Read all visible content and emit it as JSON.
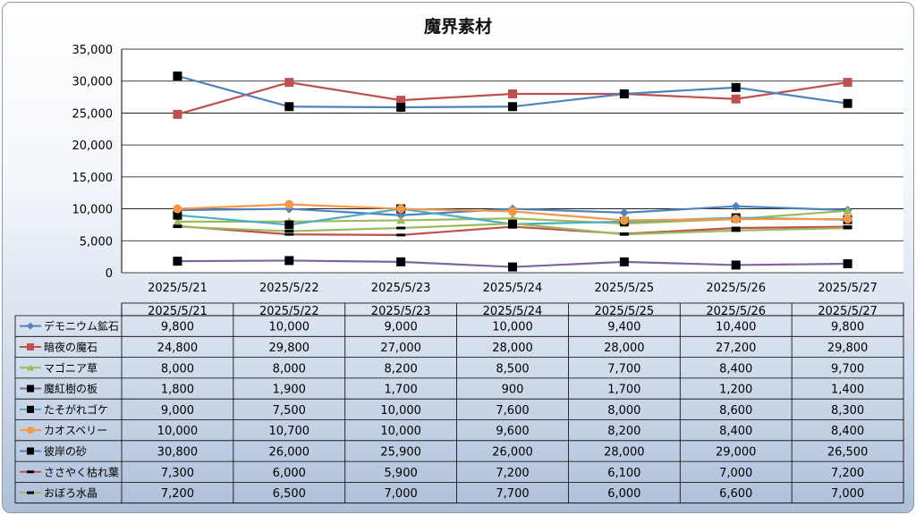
{
  "chart_data": {
    "type": "line",
    "title": "魔界素材",
    "categories": [
      "2025/5/21",
      "2025/5/22",
      "2025/5/23",
      "2025/5/24",
      "2025/5/25",
      "2025/5/26",
      "2025/5/27"
    ],
    "ylim": [
      0,
      35000
    ],
    "yticks": [
      "0",
      "5,000",
      "10,000",
      "15,000",
      "20,000",
      "25,000",
      "30,000",
      "35,000"
    ],
    "ytick_values": [
      0,
      5000,
      10000,
      15000,
      20000,
      25000,
      30000,
      35000
    ],
    "grid": true,
    "legend_placement": "data-table",
    "series": [
      {
        "name": "デモニウム鉱石",
        "color": "#4f81bd",
        "marker": "diamond",
        "values": [
          9800,
          10000,
          9000,
          10000,
          9400,
          10400,
          9800
        ],
        "labels": [
          "9,800",
          "10,000",
          "9,000",
          "10,000",
          "9,400",
          "10,400",
          "9,800"
        ]
      },
      {
        "name": "暗夜の魔石",
        "color": "#c0504d",
        "marker": "square",
        "values": [
          24800,
          29800,
          27000,
          28000,
          28000,
          27200,
          29800
        ],
        "labels": [
          "24,800",
          "29,800",
          "27,000",
          "28,000",
          "28,000",
          "27,200",
          "29,800"
        ]
      },
      {
        "name": "マゴニア草",
        "color": "#9bbb59",
        "marker": "triangle",
        "values": [
          8000,
          8000,
          8200,
          8500,
          7700,
          8400,
          9700
        ],
        "labels": [
          "8,000",
          "8,000",
          "8,200",
          "8,500",
          "7,700",
          "8,400",
          "9,700"
        ]
      },
      {
        "name": "魔紅樹の板",
        "color": "#8064a2",
        "marker": "blacksquare",
        "values": [
          1800,
          1900,
          1700,
          900,
          1700,
          1200,
          1400
        ],
        "labels": [
          "1,800",
          "1,900",
          "1,700",
          "900",
          "1,700",
          "1,200",
          "1,400"
        ]
      },
      {
        "name": "たそがれゴケ",
        "color": "#4bacc6",
        "marker": "blacksquare",
        "values": [
          9000,
          7500,
          10000,
          7600,
          8000,
          8600,
          8300
        ],
        "labels": [
          "9,000",
          "7,500",
          "10,000",
          "7,600",
          "8,000",
          "8,600",
          "8,300"
        ]
      },
      {
        "name": "カオスベリー",
        "color": "#f79646",
        "marker": "circle",
        "values": [
          10000,
          10700,
          10000,
          9600,
          8200,
          8400,
          8400
        ],
        "labels": [
          "10,000",
          "10,700",
          "10,000",
          "9,600",
          "8,200",
          "8,400",
          "8,400"
        ]
      },
      {
        "name": "彼岸の砂",
        "color": "#4f81bd",
        "marker": "blacksquare",
        "values": [
          30800,
          26000,
          25900,
          26000,
          28000,
          29000,
          26500
        ],
        "labels": [
          "30,800",
          "26,000",
          "25,900",
          "26,000",
          "28,000",
          "29,000",
          "26,500"
        ]
      },
      {
        "name": "ささやく枯れ葉",
        "color": "#c0504d",
        "marker": "dash",
        "values": [
          7300,
          6000,
          5900,
          7200,
          6100,
          7000,
          7200
        ],
        "labels": [
          "7,300",
          "6,000",
          "5,900",
          "7,200",
          "6,100",
          "7,000",
          "7,200"
        ]
      },
      {
        "name": "おぼろ水晶",
        "color": "#9bbb59",
        "marker": "dash",
        "values": [
          7200,
          6500,
          7000,
          7700,
          6000,
          6600,
          7000
        ],
        "labels": [
          "7,200",
          "6,500",
          "7,000",
          "7,700",
          "6,000",
          "6,600",
          "7,000"
        ]
      }
    ]
  }
}
